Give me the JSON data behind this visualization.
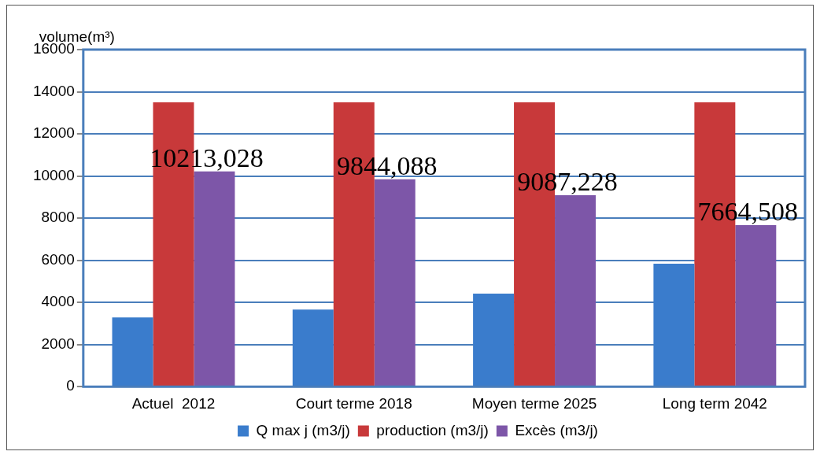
{
  "chart_data": {
    "type": "bar",
    "ylabel": "volume(m³)",
    "categories": [
      "Actuel  2012",
      "Court terme 2018",
      "Moyen terme 2025",
      "Long term 2042"
    ],
    "series": [
      {
        "name": "Q max j (m3/j)",
        "color": "#3a7ccc",
        "values": [
          3287,
          3656,
          4413,
          5835
        ]
      },
      {
        "name": "production (m3/j)",
        "color": "#c8393a",
        "values": [
          13500,
          13500,
          13500,
          13500
        ]
      },
      {
        "name": "Excès (m3/j)",
        "color": "#7d56a8",
        "values": [
          10213.028,
          9844.088,
          9087.228,
          7664.508
        ],
        "value_labels": [
          "10213,028",
          "9844,088",
          "9087,228",
          "7664,508"
        ]
      }
    ],
    "ylim": [
      0,
      16000
    ],
    "yticks": [
      0,
      2000,
      4000,
      6000,
      8000,
      10000,
      12000,
      14000,
      16000
    ],
    "grid": "y",
    "legend": "bottom"
  }
}
